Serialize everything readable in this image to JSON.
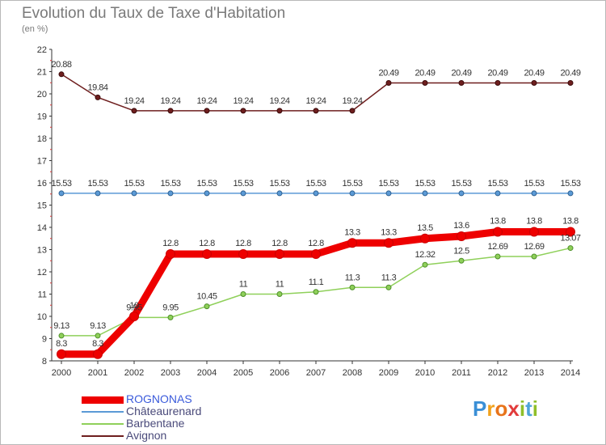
{
  "title": "Evolution du Taux de Taxe d'Habitation",
  "subtitle": "(en %)",
  "logo": {
    "letters": [
      {
        "char": "P",
        "color": "#3a8fd6"
      },
      {
        "char": "r",
        "color": "#f2a21c"
      },
      {
        "char": "o",
        "color": "#e8741a"
      },
      {
        "char": "x",
        "color": "#e23b3b"
      },
      {
        "char": "i",
        "color": "#8fbf2a"
      },
      {
        "char": "t",
        "color": "#4ea3d8"
      },
      {
        "char": "i",
        "color": "#8fbf2a"
      }
    ]
  },
  "chart_data": {
    "type": "line",
    "title": "Evolution du Taux de Taxe d'Habitation",
    "subtitle": "(en %)",
    "xlabel": "",
    "ylabel": "",
    "x": [
      2000,
      2001,
      2002,
      2003,
      2004,
      2005,
      2006,
      2007,
      2008,
      2009,
      2010,
      2011,
      2012,
      2013,
      2014
    ],
    "x_ticks": [
      "2000",
      "2001",
      "2002",
      "2003",
      "2004",
      "2005",
      "2006",
      "2007",
      "2008",
      "2009",
      "2010",
      "2011",
      "2012",
      "2013",
      "2014"
    ],
    "ylim": [
      8,
      22
    ],
    "y_ticks": [
      "8",
      "9",
      "10",
      "11",
      "12",
      "13",
      "14",
      "15",
      "16",
      "17",
      "18",
      "19",
      "20",
      "21",
      "22"
    ],
    "grid": false,
    "legend_position": "bottom-left",
    "series": [
      {
        "name": "Avignon",
        "color": "#6e1e1e",
        "values": [
          20.88,
          19.84,
          19.24,
          19.24,
          19.24,
          19.24,
          19.24,
          19.24,
          19.24,
          20.49,
          20.49,
          20.49,
          20.49,
          20.49,
          20.49
        ],
        "labels": [
          "20.88",
          "19.84",
          "19.24",
          "19.24",
          "19.24",
          "19.24",
          "19.24",
          "19.24",
          "19.24",
          "20.49",
          "20.49",
          "20.49",
          "20.49",
          "20.49",
          "20.49"
        ]
      },
      {
        "name": "Châteaurenard",
        "color": "#5b9ad6",
        "values": [
          15.53,
          15.53,
          15.53,
          15.53,
          15.53,
          15.53,
          15.53,
          15.53,
          15.53,
          15.53,
          15.53,
          15.53,
          15.53,
          15.53,
          15.53
        ],
        "labels": [
          "15.53",
          "15.53",
          "15.53",
          "15.53",
          "15.53",
          "15.53",
          "15.53",
          "15.53",
          "15.53",
          "15.53",
          "15.53",
          "15.53",
          "15.53",
          "15.53",
          "15.53"
        ]
      },
      {
        "name": "Barbentane",
        "color": "#8fd05a",
        "values": [
          9.13,
          9.13,
          9.95,
          9.95,
          10.45,
          11,
          11,
          11.1,
          11.3,
          11.3,
          12.32,
          12.5,
          12.69,
          12.69,
          13.07
        ],
        "labels": [
          "9.13",
          "9.13",
          "9.95",
          "9.95",
          "10.45",
          "11",
          "11",
          "11.1",
          "11.3",
          "11.3",
          "12.32",
          "12.5",
          "12.69",
          "12.69",
          "13.07"
        ]
      },
      {
        "name": "ROGNONAS",
        "color": "#ee0000",
        "values": [
          8.3,
          8.3,
          10,
          12.8,
          12.8,
          12.8,
          12.8,
          12.8,
          13.3,
          13.3,
          13.5,
          13.6,
          13.8,
          13.8,
          13.8
        ],
        "labels": [
          "8.3",
          "8.3",
          "10",
          "12.8",
          "12.8",
          "12.8",
          "12.8",
          "12.8",
          "13.3",
          "13.3",
          "13.5",
          "13.6",
          "13.8",
          "13.8",
          "13.8"
        ]
      }
    ],
    "legend": [
      {
        "name": "ROGNONAS",
        "color": "#ee0000",
        "text_color": "#3b5bdb",
        "width": 9
      },
      {
        "name": "Châteaurenard",
        "color": "#5b9ad6",
        "text_color": "#4a4a7a",
        "width": 2
      },
      {
        "name": "Barbentane",
        "color": "#8fd05a",
        "text_color": "#4a4a7a",
        "width": 2
      },
      {
        "name": "Avignon",
        "color": "#6e1e1e",
        "text_color": "#4a4a7a",
        "width": 2
      }
    ]
  }
}
